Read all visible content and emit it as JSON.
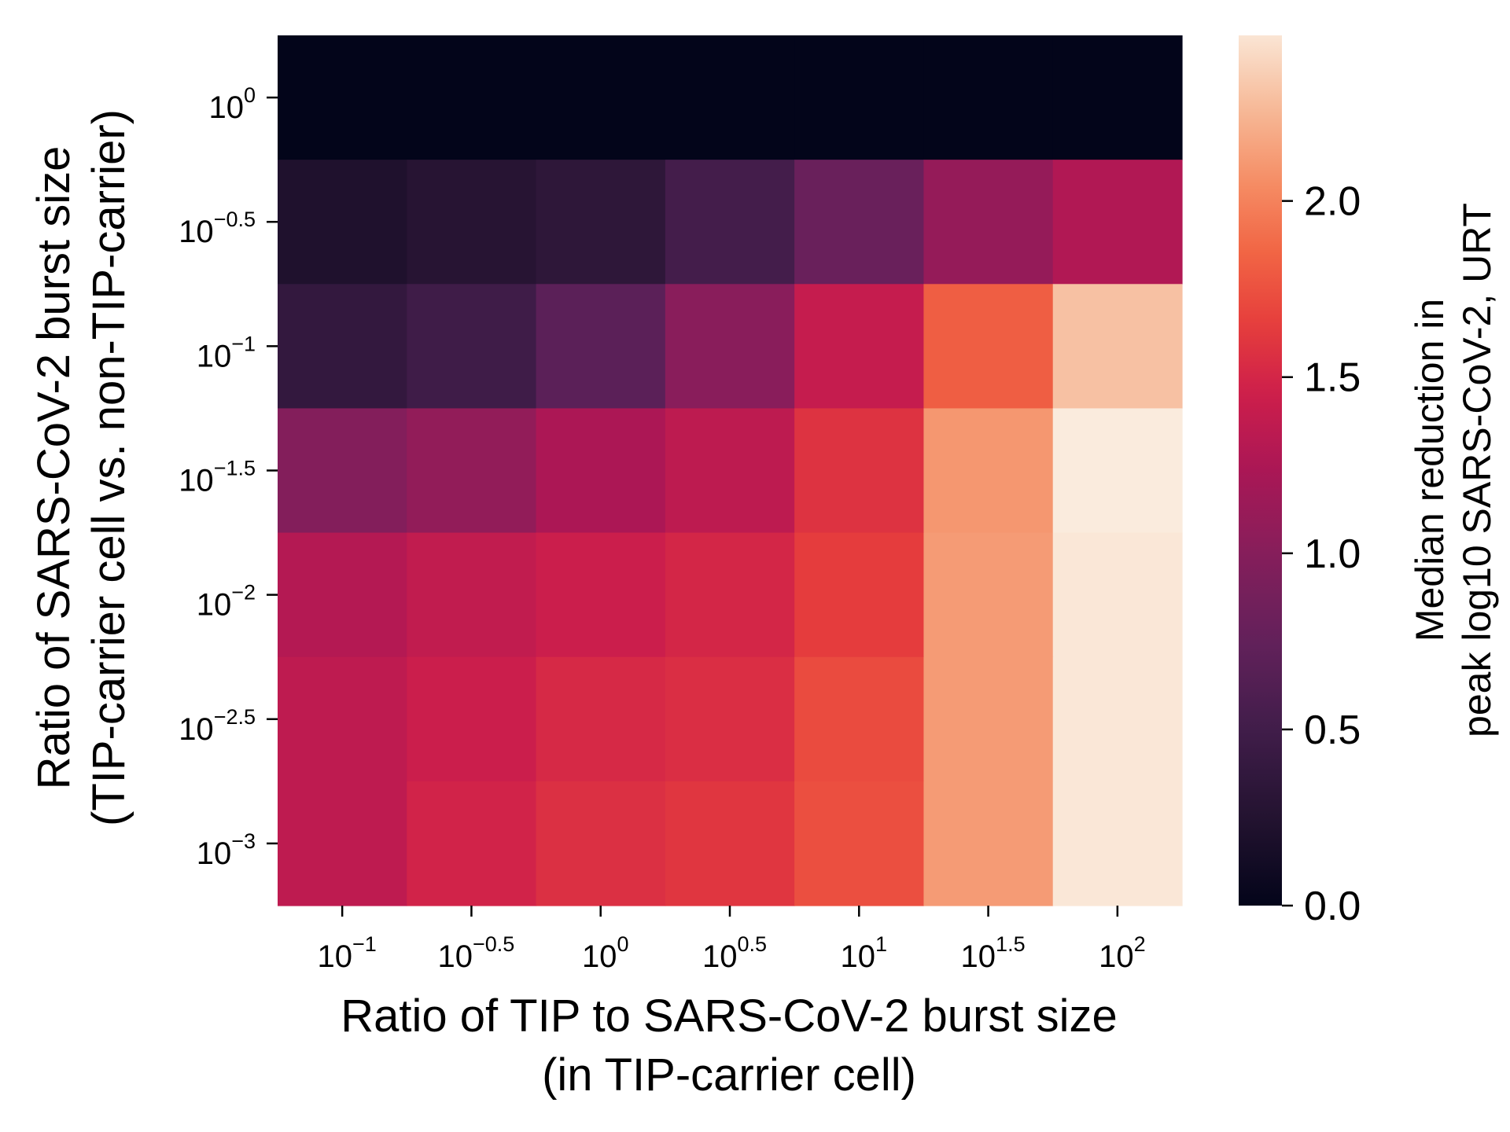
{
  "chart_data": {
    "type": "heatmap",
    "x_ticks": [
      {
        "base": "10",
        "exp": "−1"
      },
      {
        "base": "10",
        "exp": "−0.5"
      },
      {
        "base": "10",
        "exp": "0"
      },
      {
        "base": "10",
        "exp": "0.5"
      },
      {
        "base": "10",
        "exp": "1"
      },
      {
        "base": "10",
        "exp": "1.5"
      },
      {
        "base": "10",
        "exp": "2"
      }
    ],
    "y_ticks": [
      {
        "base": "10",
        "exp": "0"
      },
      {
        "base": "10",
        "exp": "−0.5"
      },
      {
        "base": "10",
        "exp": "−1"
      },
      {
        "base": "10",
        "exp": "−1.5"
      },
      {
        "base": "10",
        "exp": "−2"
      },
      {
        "base": "10",
        "exp": "−2.5"
      },
      {
        "base": "10",
        "exp": "−3"
      }
    ],
    "xlabel_line1": "Ratio of TIP to SARS-CoV-2 burst size",
    "xlabel_line2": "(in TIP-carrier cell)",
    "ylabel_line1": "Ratio of SARS-CoV-2 burst size",
    "ylabel_line2": "(TIP-carrier cell vs. non-TIP-carrier)",
    "colorbar": {
      "label_line1": "Median reduction in",
      "label_line2": "peak log10 SARS-CoV-2, URT",
      "range": [
        0.0,
        2.5
      ],
      "ticks": [
        "0.0",
        "0.5",
        "1.0",
        "1.5",
        "2.0"
      ],
      "colormap": "rocket"
    },
    "values": [
      [
        0.0,
        0.0,
        0.0,
        0.0,
        0.0,
        0.0,
        0.0
      ],
      [
        0.22,
        0.28,
        0.34,
        0.52,
        0.8,
        1.1,
        1.28
      ],
      [
        0.38,
        0.48,
        0.7,
        1.02,
        1.4,
        1.82,
        2.3
      ],
      [
        0.98,
        1.08,
        1.25,
        1.35,
        1.58,
        2.1,
        2.5
      ],
      [
        1.3,
        1.38,
        1.44,
        1.5,
        1.64,
        2.12,
        2.48
      ],
      [
        1.36,
        1.44,
        1.52,
        1.55,
        1.72,
        2.12,
        2.48
      ],
      [
        1.36,
        1.48,
        1.56,
        1.6,
        1.74,
        2.12,
        2.48
      ]
    ]
  }
}
